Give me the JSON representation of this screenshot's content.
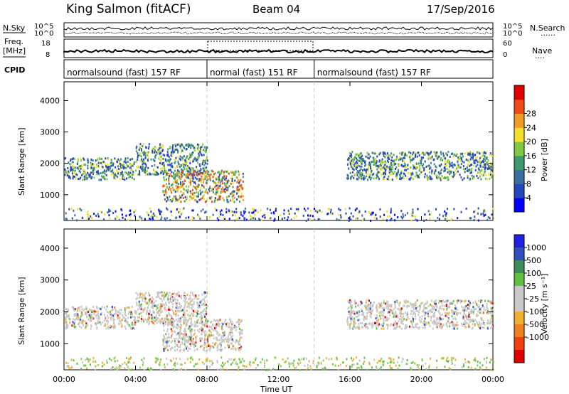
{
  "header": {
    "station": "King Salmon (fitACF)",
    "beam": "Beam 04",
    "date": "17/Sep/2016"
  },
  "strip_labels": {
    "nsky": "N.Sky",
    "nsearch": "N.Search",
    "freq": "Freq.",
    "mhz": "[MHz]",
    "cpid": "CPID",
    "nave": "Nave",
    "dots": "......",
    "dots_short": "...."
  },
  "strip_ticks": {
    "left_top": [
      "10^5",
      "10^0"
    ],
    "right_top": [
      "10^5",
      "10^0"
    ],
    "left_freq": [
      "18",
      "8"
    ],
    "right_nave": [
      "60",
      "0"
    ]
  },
  "cpid_segments": [
    {
      "label": "normalsound (fast) 157 RF",
      "start": 0,
      "end": 8
    },
    {
      "label": "normal (fast) 151 RF",
      "start": 8,
      "end": 14
    },
    {
      "label": "normalsound (fast) 157 RF",
      "start": 14,
      "end": 24
    }
  ],
  "chart_data": [
    {
      "type": "heatmap",
      "name": "power-panel",
      "xlabel": "",
      "ylabel": "Slant Range [km]",
      "xlim": [
        0,
        24
      ],
      "ylim": [
        180,
        4600
      ],
      "yticks": [
        1000,
        2000,
        3000,
        4000
      ],
      "colorbar_label": "Power [dB]",
      "colorbar_ticks": [
        "4",
        "8",
        "12",
        "16",
        "20",
        "24",
        "28"
      ],
      "colorbar_colors": [
        "#0000ff",
        "#2348bd",
        "#3a6e9e",
        "#3c9a6e",
        "#80c840",
        "#f3e02a",
        "#f09a28",
        "#f04a1a",
        "#e00000"
      ],
      "scatter_bands": [
        {
          "x0": 0,
          "x1": 4,
          "y0": 1500,
          "y1": 2200,
          "level": "mid"
        },
        {
          "x0": 4,
          "x1": 8,
          "y0": 1650,
          "y1": 2650,
          "level": "mid"
        },
        {
          "x0": 5.5,
          "x1": 10,
          "y0": 800,
          "y1": 1800,
          "level": "high"
        },
        {
          "x0": 15.8,
          "x1": 24,
          "y0": 1500,
          "y1": 2400,
          "level": "mid"
        },
        {
          "x0": 0,
          "x1": 24,
          "y0": 200,
          "y1": 600,
          "level": "low"
        }
      ]
    },
    {
      "type": "heatmap",
      "name": "velocity-panel",
      "xlabel": "Time UT",
      "ylabel": "Slant Range [km]",
      "xlim": [
        0,
        24
      ],
      "ylim": [
        180,
        4600
      ],
      "xticks": [
        "00:00",
        "04:00",
        "08:00",
        "12:00",
        "16:00",
        "20:00",
        "00:00"
      ],
      "yticks": [
        1000,
        2000,
        3000,
        4000
      ],
      "colorbar_label": "Velocity [m s⁻¹]",
      "colorbar_ticks": [
        "1000",
        "500",
        "100",
        "25",
        "-25",
        "-100",
        "-500",
        "-1000"
      ],
      "colorbar_colors": [
        "#2020e0",
        "#3050c0",
        "#3c8c5a",
        "#60c040",
        "#c8c8c8",
        "#c8c8c8",
        "#f0b030",
        "#f08020",
        "#f04010",
        "#e00000"
      ],
      "scatter_bands": [
        {
          "x0": 0,
          "x1": 4,
          "y0": 1500,
          "y1": 2200,
          "level": "gray"
        },
        {
          "x0": 4,
          "x1": 8,
          "y0": 1650,
          "y1": 2650,
          "level": "gray"
        },
        {
          "x0": 5.5,
          "x1": 10,
          "y0": 800,
          "y1": 1800,
          "level": "gray"
        },
        {
          "x0": 15.8,
          "x1": 24,
          "y0": 1500,
          "y1": 2400,
          "level": "gray"
        },
        {
          "x0": 0,
          "x1": 24,
          "y0": 200,
          "y1": 600,
          "level": "green"
        }
      ]
    }
  ]
}
